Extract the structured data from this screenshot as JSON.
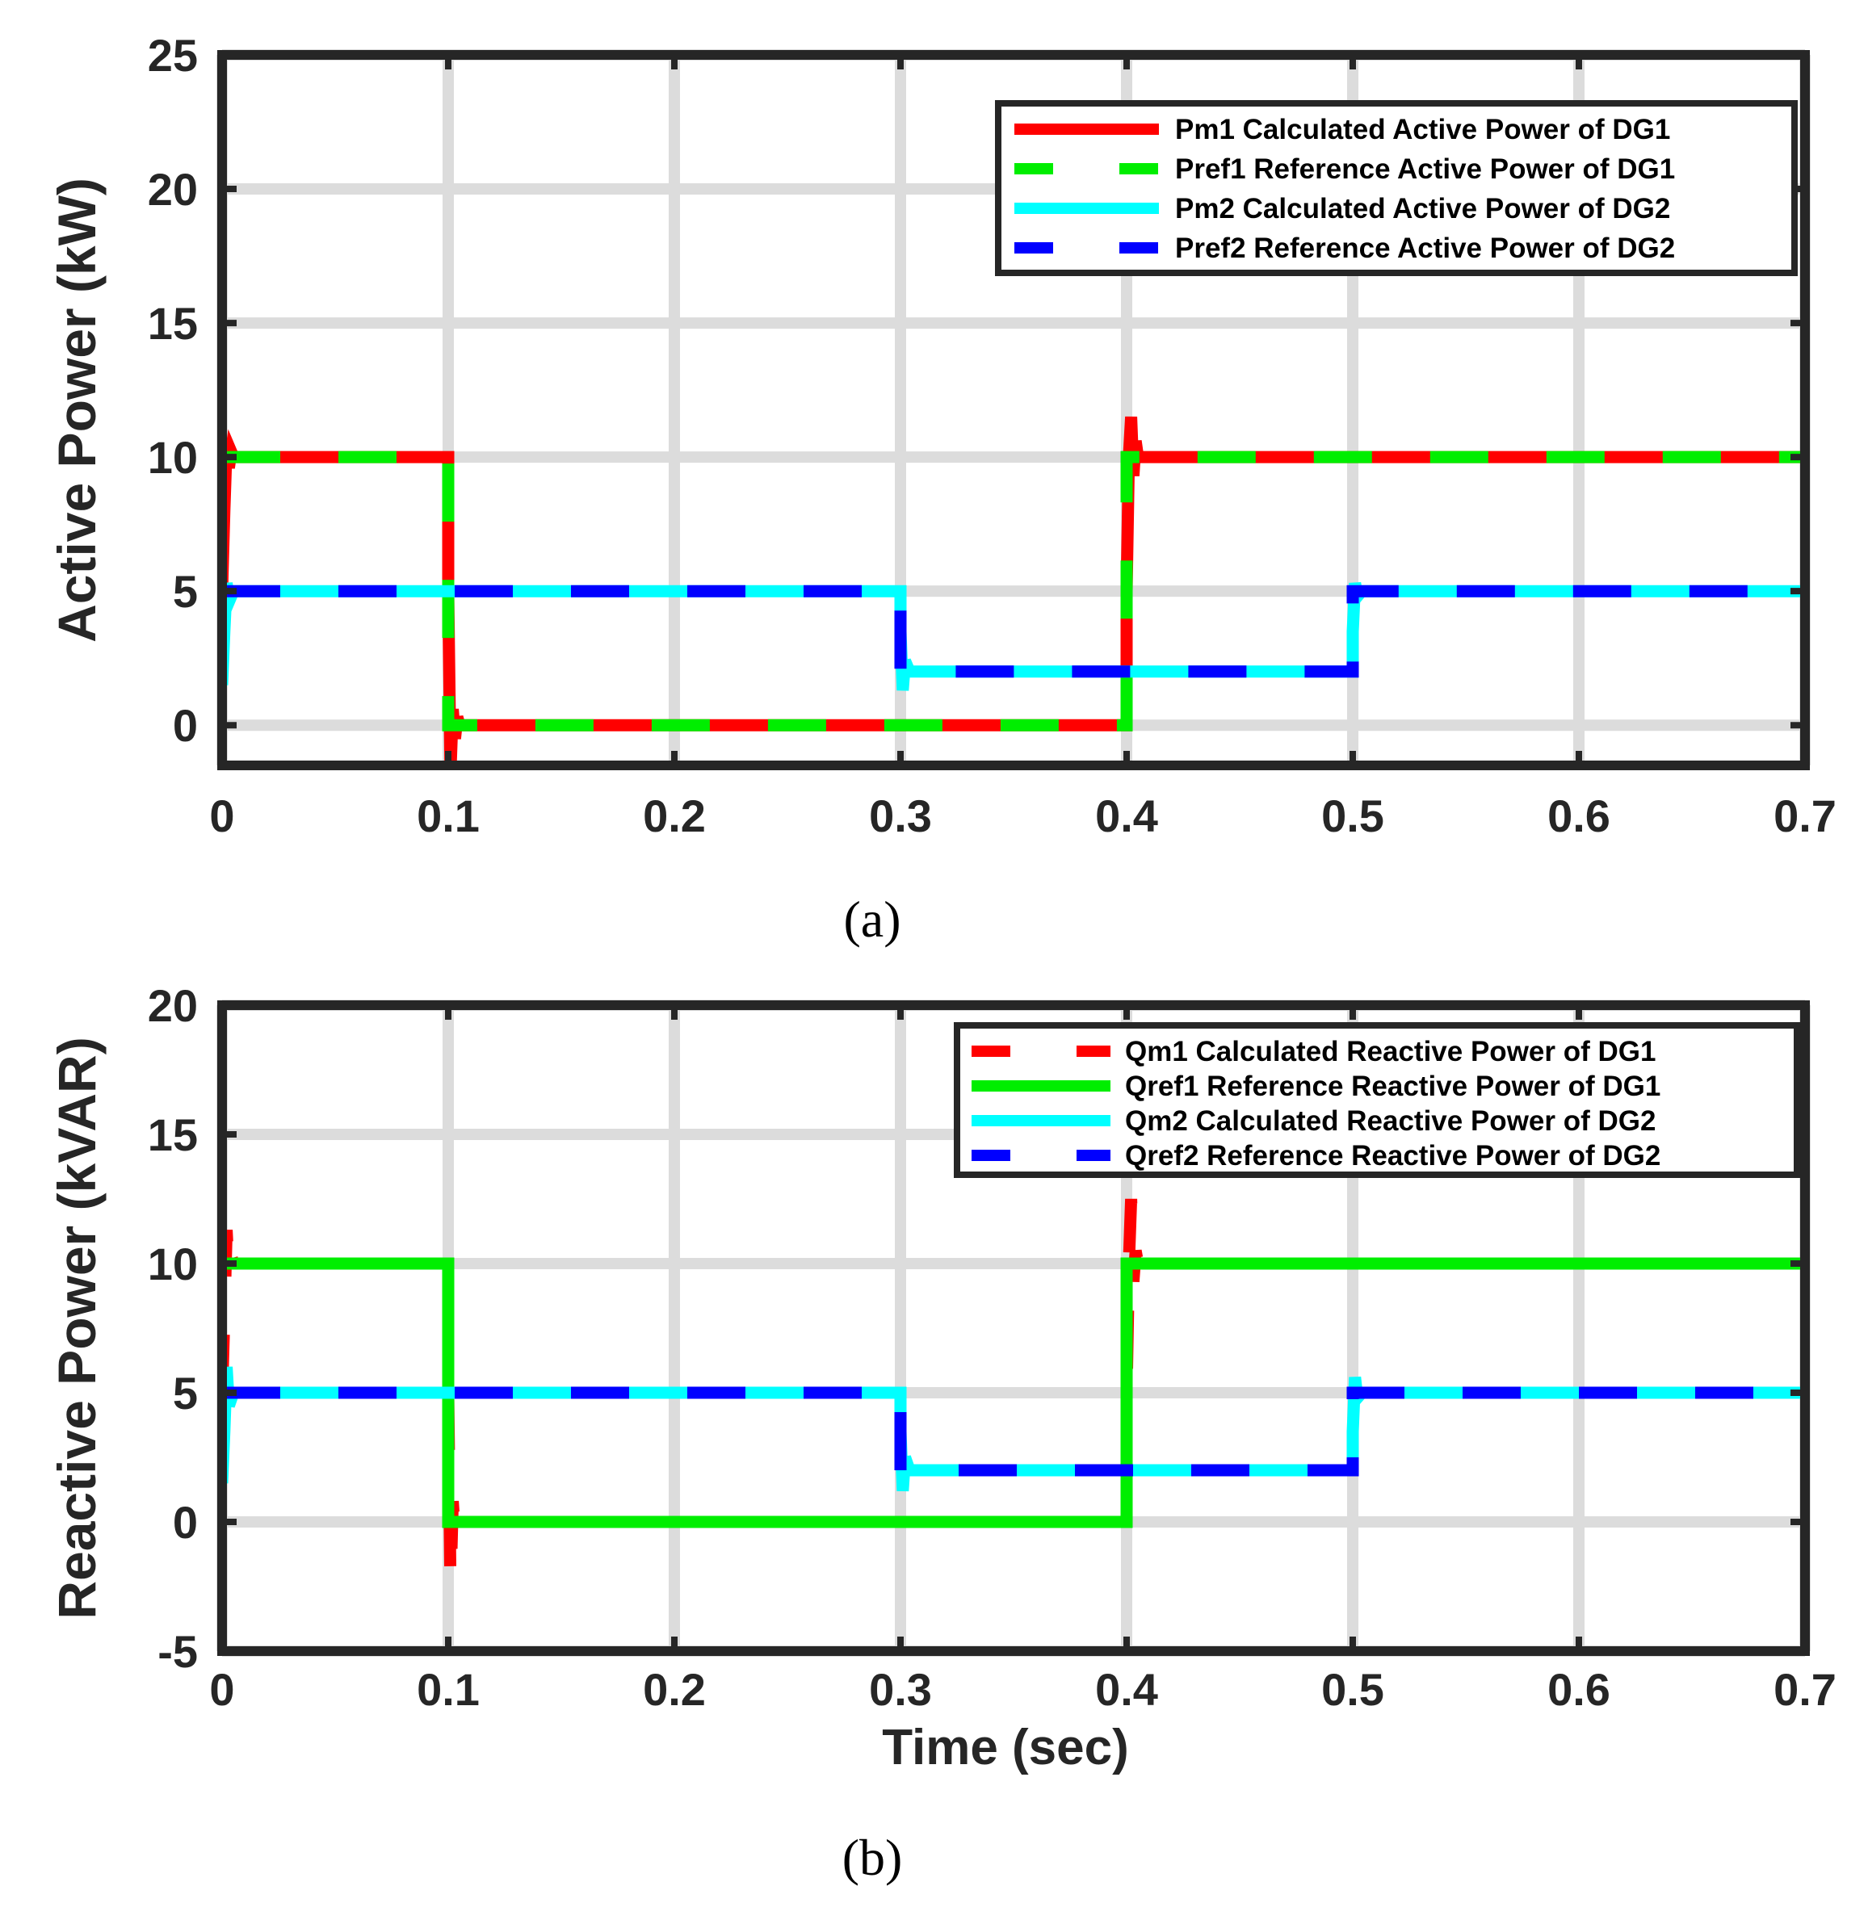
{
  "chart_data": [
    {
      "type": "line",
      "panel_label": "(a)",
      "xlabel": "",
      "ylabel": "Active Power (kW)",
      "xlim": [
        0,
        0.7
      ],
      "ylim": [
        -1.5,
        25
      ],
      "xticks": [
        0,
        0.1,
        0.2,
        0.3,
        0.4,
        0.5,
        0.6,
        0.7
      ],
      "xtick_labels": [
        "0",
        "0.1",
        "0.2",
        "0.3",
        "0.4",
        "0.5",
        "0.6",
        "0.7"
      ],
      "yticks": [
        0,
        5,
        10,
        15,
        20,
        25
      ],
      "ytick_labels": [
        "0",
        "5",
        "10",
        "15",
        "20",
        "25"
      ],
      "grid": true,
      "legend_position": "top-right",
      "series": [
        {
          "name": "Pm1 Calculated Active Power of DG1",
          "color": "#ff0000",
          "style": "solid",
          "x": [
            0,
            0.001,
            0.002,
            0.003,
            0.004,
            0.005,
            0.1,
            0.1,
            0.101,
            0.102,
            0.103,
            0.104,
            0.105,
            0.4,
            0.4,
            0.401,
            0.402,
            0.403,
            0.404,
            0.405,
            0.7
          ],
          "y": [
            5,
            8,
            10.5,
            9.6,
            10.2,
            10,
            10,
            5,
            -1.7,
            0.6,
            -0.5,
            0.3,
            0,
            0,
            5,
            10,
            11.5,
            9.3,
            10.6,
            10,
            10
          ]
        },
        {
          "name": "Pref1 Reference Active Power of DG1",
          "color": "#00ee00",
          "style": "dashed",
          "x": [
            0,
            0.1,
            0.1,
            0.4,
            0.4,
            0.7
          ],
          "y": [
            10,
            10,
            0,
            0,
            10,
            10
          ]
        },
        {
          "name": "Pm2 Calculated Active Power of DG2",
          "color": "#00ffff",
          "style": "solid",
          "x": [
            0,
            0.001,
            0.002,
            0.003,
            0.005,
            0.3,
            0.3,
            0.301,
            0.302,
            0.304,
            0.5,
            0.5,
            0.501,
            0.502,
            0.504,
            0.7
          ],
          "y": [
            1.5,
            3.5,
            5.3,
            4.6,
            5,
            5,
            3.5,
            1.3,
            2.4,
            2,
            2,
            3.5,
            5.3,
            4.8,
            5,
            5
          ]
        },
        {
          "name": "Pref2 Reference Active Power of DG2",
          "color": "#0000ff",
          "style": "dashed",
          "x": [
            0,
            0.3,
            0.3,
            0.5,
            0.5,
            0.7
          ],
          "y": [
            5,
            5,
            2,
            2,
            5,
            5
          ]
        }
      ]
    },
    {
      "type": "line",
      "panel_label": "(b)",
      "xlabel": "Time (sec)",
      "ylabel": "Reactive Power (kVAR)",
      "xlim": [
        0,
        0.7
      ],
      "ylim": [
        -5,
        20
      ],
      "xticks": [
        0,
        0.1,
        0.2,
        0.3,
        0.4,
        0.5,
        0.6,
        0.7
      ],
      "xtick_labels": [
        "0",
        "0.1",
        "0.2",
        "0.3",
        "0.4",
        "0.5",
        "0.6",
        "0.7"
      ],
      "yticks": [
        -5,
        0,
        5,
        10,
        15,
        20
      ],
      "ytick_labels": [
        "-5",
        "0",
        "5",
        "10",
        "15",
        "20"
      ],
      "grid": true,
      "legend_position": "top-right",
      "series": [
        {
          "name": "Qm1 Calculated Reactive Power of DG1",
          "color": "#ff0000",
          "style": "dashed",
          "x": [
            0,
            0.001,
            0.002,
            0.003,
            0.004,
            0.005,
            0.1,
            0.1,
            0.101,
            0.102,
            0.103,
            0.104,
            0.105,
            0.4,
            0.4,
            0.401,
            0.402,
            0.403,
            0.404,
            0.405,
            0.7
          ],
          "y": [
            5,
            8,
            11.3,
            9.5,
            10.3,
            10,
            10,
            5,
            -2.5,
            0.8,
            -0.5,
            0.3,
            0,
            0,
            5,
            10,
            12.5,
            9.3,
            10.5,
            10,
            10
          ]
        },
        {
          "name": "Qref1 Reference Reactive Power of DG1",
          "color": "#00ee00",
          "style": "solid",
          "x": [
            0,
            0.1,
            0.1,
            0.4,
            0.4,
            0.7
          ],
          "y": [
            10,
            10,
            0,
            0,
            10,
            10
          ]
        },
        {
          "name": "Qm2 Calculated Reactive Power of DG2",
          "color": "#00ffff",
          "style": "solid",
          "x": [
            0,
            0.001,
            0.002,
            0.003,
            0.005,
            0.3,
            0.3,
            0.301,
            0.302,
            0.304,
            0.5,
            0.5,
            0.501,
            0.502,
            0.504,
            0.7
          ],
          "y": [
            1.5,
            3.5,
            6,
            4.5,
            5,
            5,
            3.5,
            1.2,
            2.5,
            2,
            2,
            3.5,
            5.6,
            4.8,
            5,
            5
          ]
        },
        {
          "name": "Qref2 Reference Reactive Power of DG2",
          "color": "#0000ff",
          "style": "dashed",
          "x": [
            0,
            0.3,
            0.3,
            0.5,
            0.5,
            0.7
          ],
          "y": [
            5,
            5,
            2,
            2,
            5,
            5
          ]
        }
      ]
    }
  ]
}
